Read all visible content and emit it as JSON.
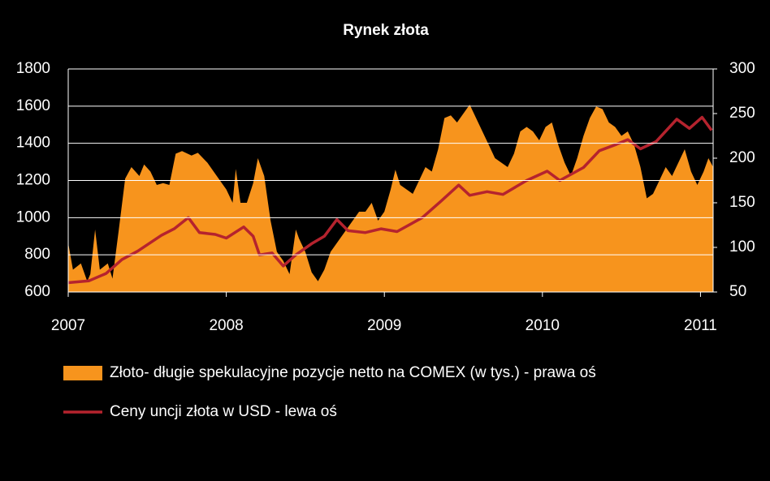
{
  "chart_data": {
    "type": "combo",
    "title": "Rynek złota",
    "xlim": [
      2007,
      2011.08
    ],
    "xticks": [
      2007,
      2008,
      2009,
      2010,
      2011
    ],
    "ylim": [
      600,
      1800
    ],
    "yticks": [
      600,
      800,
      1000,
      1200,
      1400,
      1600,
      1800
    ],
    "y2lim": [
      50,
      300
    ],
    "y2ticks": [
      50,
      100,
      150,
      200,
      250,
      300
    ],
    "grid": true,
    "legend": "bottom",
    "series": [
      {
        "name": "Złoto- długie spekulacyjne pozycje netto na COMEX (w tys.) - prawa oś",
        "type": "area",
        "axis": "y2",
        "color": "#f7941d",
        "x": [
          2007.0,
          2007.03,
          2007.08,
          2007.12,
          2007.14,
          2007.17,
          2007.2,
          2007.25,
          2007.28,
          2007.32,
          2007.36,
          2007.4,
          2007.45,
          2007.48,
          2007.52,
          2007.56,
          2007.6,
          2007.64,
          2007.68,
          2007.72,
          2007.78,
          2007.82,
          2007.88,
          2007.94,
          2008.0,
          2008.04,
          2008.06,
          2008.09,
          2008.13,
          2008.17,
          2008.2,
          2008.24,
          2008.28,
          2008.32,
          2008.36,
          2008.4,
          2008.44,
          2008.46,
          2008.5,
          2008.54,
          2008.58,
          2008.62,
          2008.66,
          2008.72,
          2008.78,
          2008.84,
          2008.88,
          2008.92,
          2008.96,
          2009.0,
          2009.04,
          2009.07,
          2009.1,
          2009.14,
          2009.18,
          2009.22,
          2009.26,
          2009.3,
          2009.34,
          2009.38,
          2009.42,
          2009.46,
          2009.5,
          2009.54,
          2009.58,
          2009.62,
          2009.66,
          2009.7,
          2009.74,
          2009.78,
          2009.82,
          2009.86,
          2009.9,
          2009.94,
          2009.98,
          2010.02,
          2010.06,
          2010.1,
          2010.14,
          2010.18,
          2010.22,
          2010.26,
          2010.3,
          2010.34,
          2010.38,
          2010.42,
          2010.46,
          2010.5,
          2010.54,
          2010.58,
          2010.62,
          2010.66,
          2010.7,
          2010.74,
          2010.78,
          2010.82,
          2010.86,
          2010.9,
          2010.94,
          2010.98,
          2011.02,
          2011.05,
          2011.08
        ],
        "values": [
          105,
          75,
          82,
          62,
          70,
          120,
          75,
          82,
          65,
          120,
          177,
          190,
          180,
          193,
          185,
          170,
          172,
          170,
          205,
          208,
          203,
          206,
          195,
          180,
          165,
          150,
          188,
          150,
          150,
          172,
          200,
          180,
          130,
          95,
          85,
          70,
          120,
          110,
          95,
          72,
          62,
          75,
          95,
          110,
          125,
          140,
          140,
          150,
          130,
          140,
          165,
          187,
          170,
          165,
          160,
          175,
          190,
          185,
          210,
          245,
          248,
          240,
          250,
          260,
          245,
          230,
          215,
          200,
          195,
          190,
          205,
          230,
          235,
          230,
          220,
          235,
          240,
          215,
          195,
          180,
          200,
          225,
          245,
          258,
          255,
          240,
          235,
          225,
          230,
          215,
          190,
          155,
          160,
          175,
          190,
          180,
          195,
          210,
          185,
          170,
          185,
          200,
          190
        ]
      },
      {
        "name": "Ceny uncji złota w USD - lewa oś",
        "type": "line",
        "color": "#b5232e",
        "x": [
          2007.0,
          2007.13,
          2007.24,
          2007.34,
          2007.44,
          2007.59,
          2007.67,
          2007.76,
          2007.83,
          2007.93,
          2008.0,
          2008.11,
          2008.17,
          2008.21,
          2008.29,
          2008.36,
          2008.44,
          2008.54,
          2008.62,
          2008.7,
          2008.77,
          2008.88,
          2008.98,
          2009.08,
          2009.24,
          2009.36,
          2009.47,
          2009.54,
          2009.65,
          2009.75,
          2009.9,
          2010.03,
          2010.11,
          2010.26,
          2010.36,
          2010.47,
          2010.54,
          2010.62,
          2010.72,
          2010.85,
          2010.93,
          2011.01,
          2011.07
        ],
        "values": [
          650,
          660,
          700,
          775,
          820,
          905,
          940,
          1000,
          920,
          910,
          890,
          950,
          900,
          800,
          810,
          740,
          800,
          860,
          900,
          990,
          930,
          920,
          940,
          925,
          1000,
          1090,
          1175,
          1120,
          1140,
          1125,
          1200,
          1250,
          1200,
          1270,
          1360,
          1395,
          1420,
          1370,
          1410,
          1530,
          1480,
          1540,
          1470
        ]
      }
    ]
  }
}
